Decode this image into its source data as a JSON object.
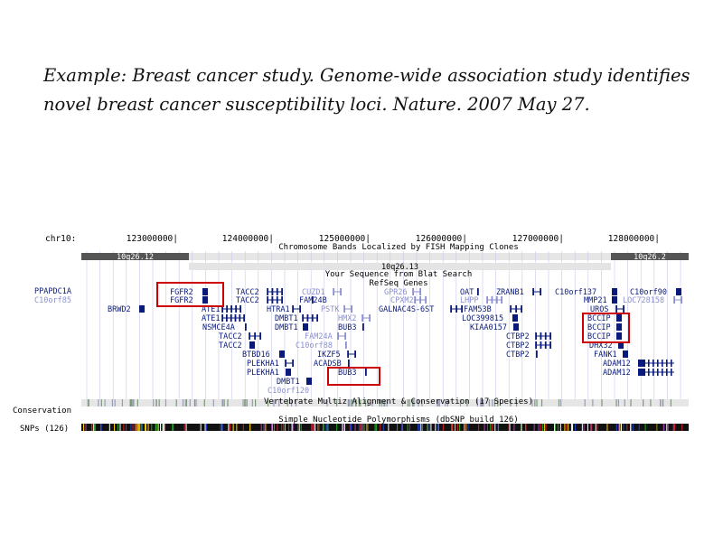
{
  "caption": {
    "line1": "Example: Breast cancer study. Genome-wide association study identifies",
    "line2": "novel breast cancer susceptibility loci. Nature. 2007 May 27."
  },
  "colors": {
    "gene_dark": "#0a1a7a",
    "gene_light": "#8a8fd0",
    "highlight_box": "#cc0000",
    "band_dark": "#555555",
    "band_light": "#e4e4e4",
    "grid": "#c8c8ec"
  },
  "browser": {
    "chrom_label": "chr10:",
    "positions": [
      "123000000|",
      "124000000|",
      "125000000|",
      "126000000|",
      "127000000|",
      "128000000|"
    ],
    "track_titles": {
      "bands": "Chromosome Bands Localized by FISH Mapping Clones",
      "blat": "Your Sequence from Blat Search",
      "refseq": "RefSeq Genes",
      "conservation": "Vertebrate Multiz Alignment & Conservation (17 Species)",
      "snps": "Simple Nucleotide Polymorphisms (dbSNP build 126)"
    },
    "bands": [
      {
        "label": "10q26.12",
        "shade": "dark"
      },
      {
        "label": "10q26.13",
        "shade": "light"
      },
      {
        "label": "10q26.2",
        "shade": "dark"
      }
    ],
    "left_labels": [
      {
        "text": "PPAPDC1A",
        "shade": "dark"
      },
      {
        "text": "C10orf85",
        "shade": "light"
      }
    ],
    "side_labels": {
      "conservation": "Conservation",
      "snps": "SNPs (126)"
    },
    "genes": [
      {
        "t": "FGFR2",
        "s": "d"
      },
      {
        "t": "FGFR2",
        "s": "d"
      },
      {
        "t": "TACC2",
        "s": "d"
      },
      {
        "t": "TACC2",
        "s": "d"
      },
      {
        "t": "CUZD1",
        "s": "l"
      },
      {
        "t": "FAM24B",
        "s": "d"
      },
      {
        "t": "GPR26",
        "s": "l"
      },
      {
        "t": "CPXM2",
        "s": "l"
      },
      {
        "t": "OAT",
        "s": "d"
      },
      {
        "t": "LHPP",
        "s": "l"
      },
      {
        "t": "ZRANB1",
        "s": "d"
      },
      {
        "t": "C10orf137",
        "s": "d"
      },
      {
        "t": "MMP21",
        "s": "d"
      },
      {
        "t": "C10orf90",
        "s": "d"
      },
      {
        "t": "LOC728158",
        "s": "l"
      },
      {
        "t": "BRWD2",
        "s": "d"
      },
      {
        "t": "ATE1",
        "s": "d"
      },
      {
        "t": "ATE1",
        "s": "d"
      },
      {
        "t": "NSMCE4A",
        "s": "d"
      },
      {
        "t": "HTRA1",
        "s": "d"
      },
      {
        "t": "PSTK",
        "s": "l"
      },
      {
        "t": "DMBT1",
        "s": "d"
      },
      {
        "t": "HMX2",
        "s": "l"
      },
      {
        "t": "DMBT1",
        "s": "d"
      },
      {
        "t": "BUB3",
        "s": "d"
      },
      {
        "t": "GALNAC4S-6ST",
        "s": "d"
      },
      {
        "t": "FAM53B",
        "s": "d"
      },
      {
        "t": "LOC399815",
        "s": "d"
      },
      {
        "t": "KIAA0157",
        "s": "d"
      },
      {
        "t": "UROS",
        "s": "d"
      },
      {
        "t": "BCCIP",
        "s": "d"
      },
      {
        "t": "BCCIP",
        "s": "d"
      },
      {
        "t": "BCCIP",
        "s": "d"
      },
      {
        "t": "TACC2",
        "s": "d"
      },
      {
        "t": "FAM24A",
        "s": "l"
      },
      {
        "t": "TACC2",
        "s": "d"
      },
      {
        "t": "C10orf88",
        "s": "l"
      },
      {
        "t": "CTBP2",
        "s": "d"
      },
      {
        "t": "CTBP2",
        "s": "d"
      },
      {
        "t": "DHX32",
        "s": "d"
      },
      {
        "t": "BTBD16",
        "s": "d"
      },
      {
        "t": "IKZF5",
        "s": "d"
      },
      {
        "t": "CTBP2",
        "s": "d"
      },
      {
        "t": "FANK1",
        "s": "d"
      },
      {
        "t": "PLEKHA1",
        "s": "d"
      },
      {
        "t": "ACADSB",
        "s": "d"
      },
      {
        "t": "ADAM12",
        "s": "d"
      },
      {
        "t": "PLEKHA1",
        "s": "d"
      },
      {
        "t": "BUB3",
        "s": "d"
      },
      {
        "t": "ADAM12",
        "s": "d"
      },
      {
        "t": "DMBT1",
        "s": "d"
      },
      {
        "t": "C10orf120",
        "s": "l"
      }
    ]
  }
}
